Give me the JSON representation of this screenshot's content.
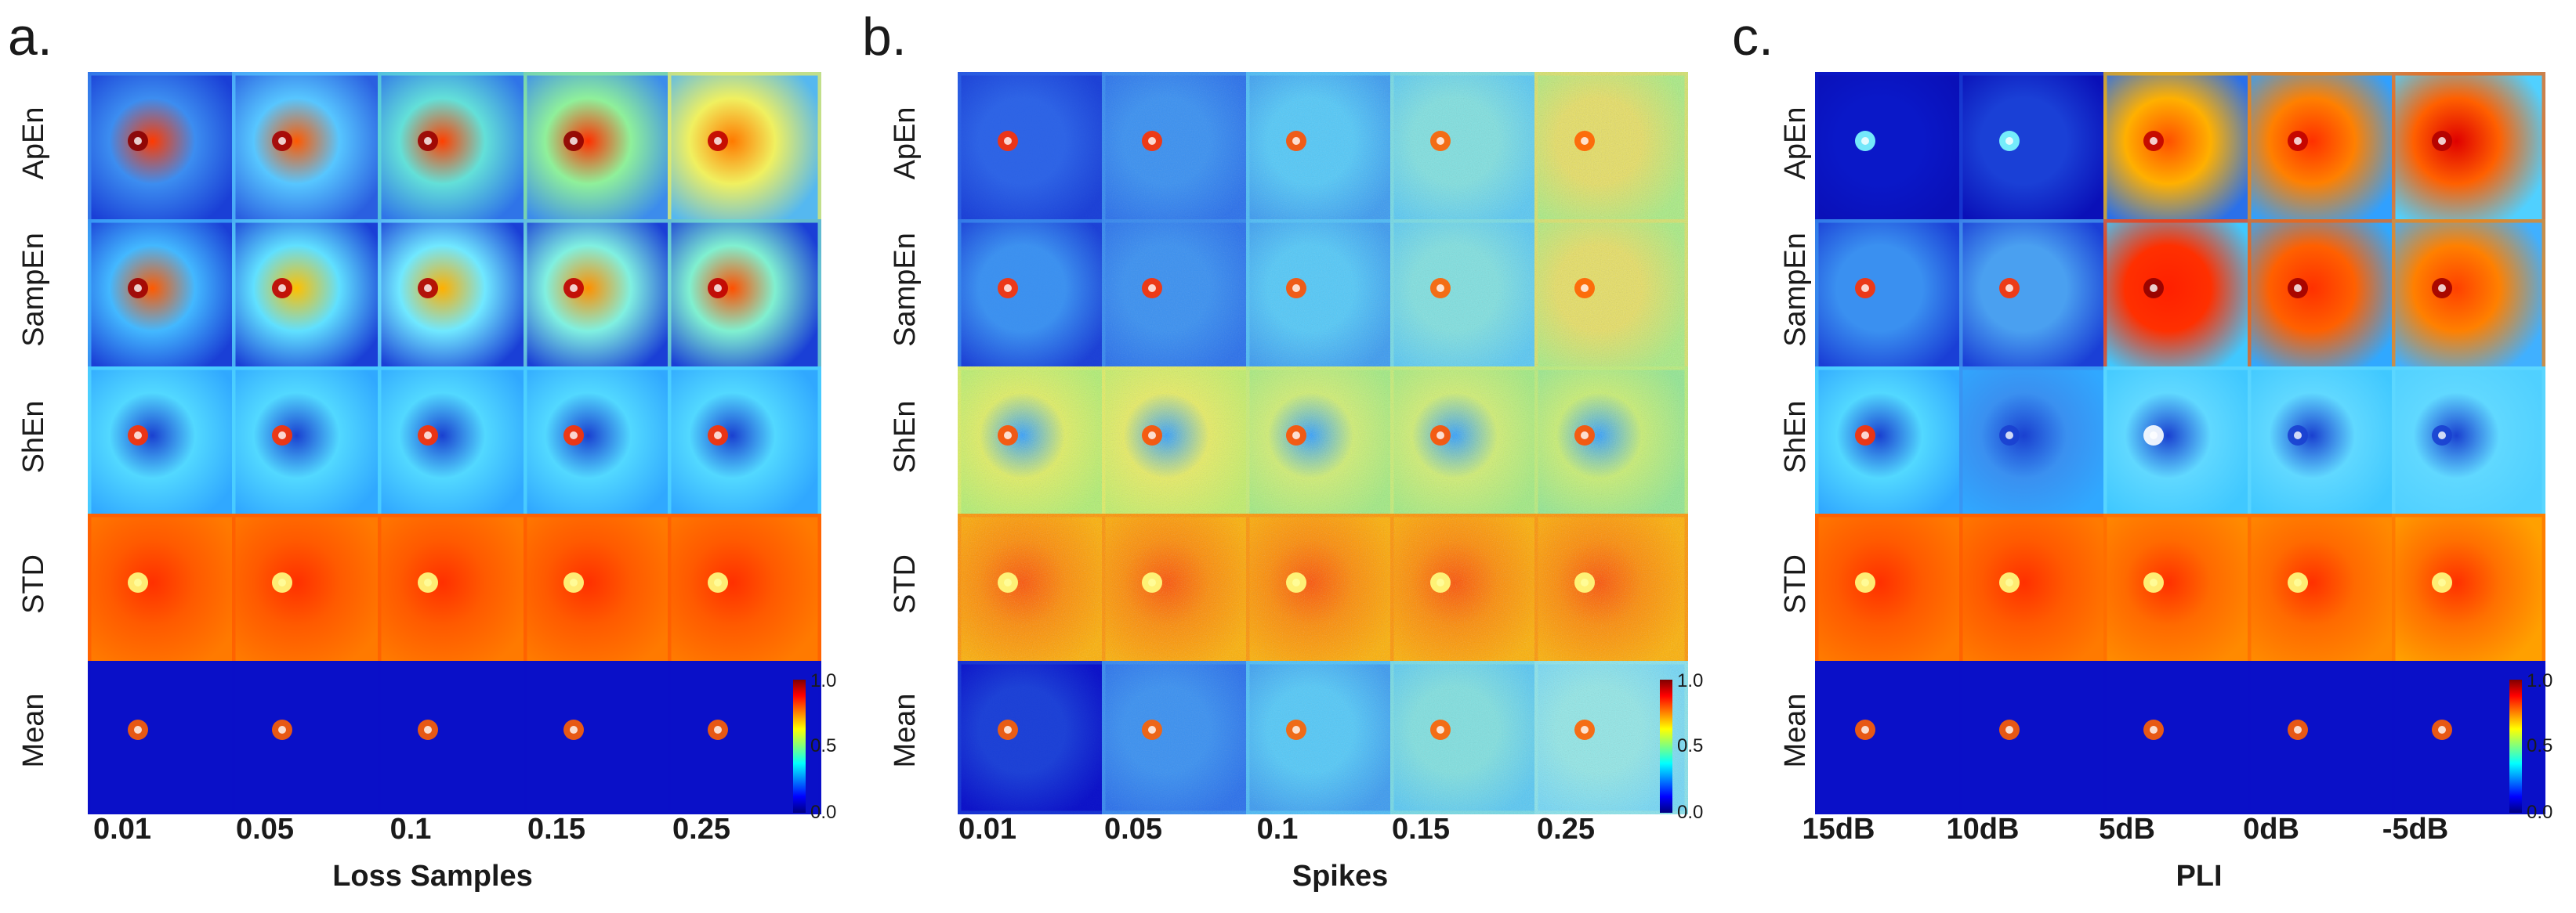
{
  "panels": [
    {
      "letter": "a.",
      "xtitle": "Loss Samples",
      "columns": [
        "0.01",
        "0.05",
        "0.1",
        "0.15",
        "0.25"
      ],
      "rows": [
        "ApEn",
        "SampEn",
        "ShEn",
        "STD",
        "Mean"
      ]
    },
    {
      "letter": "b.",
      "xtitle": "Spikes",
      "columns": [
        "0.01",
        "0.05",
        "0.1",
        "0.15",
        "0.25"
      ],
      "rows": [
        "ApEn",
        "SampEn",
        "ShEn",
        "STD",
        "Mean"
      ]
    },
    {
      "letter": "c.",
      "xtitle": "PLI",
      "columns": [
        "15dB",
        "10dB",
        "5dB",
        "0dB",
        "-5dB"
      ],
      "rows": [
        "ApEn",
        "SampEn",
        "ShEn",
        "STD",
        "Mean"
      ]
    }
  ],
  "colorbar": {
    "ticks": [
      "1.0",
      "0.5",
      "0.0"
    ],
    "colormap": [
      "#00007f",
      "#0000ff",
      "#00ffff",
      "#7fff7f",
      "#ffff00",
      "#ff0000",
      "#7f0000"
    ]
  }
}
